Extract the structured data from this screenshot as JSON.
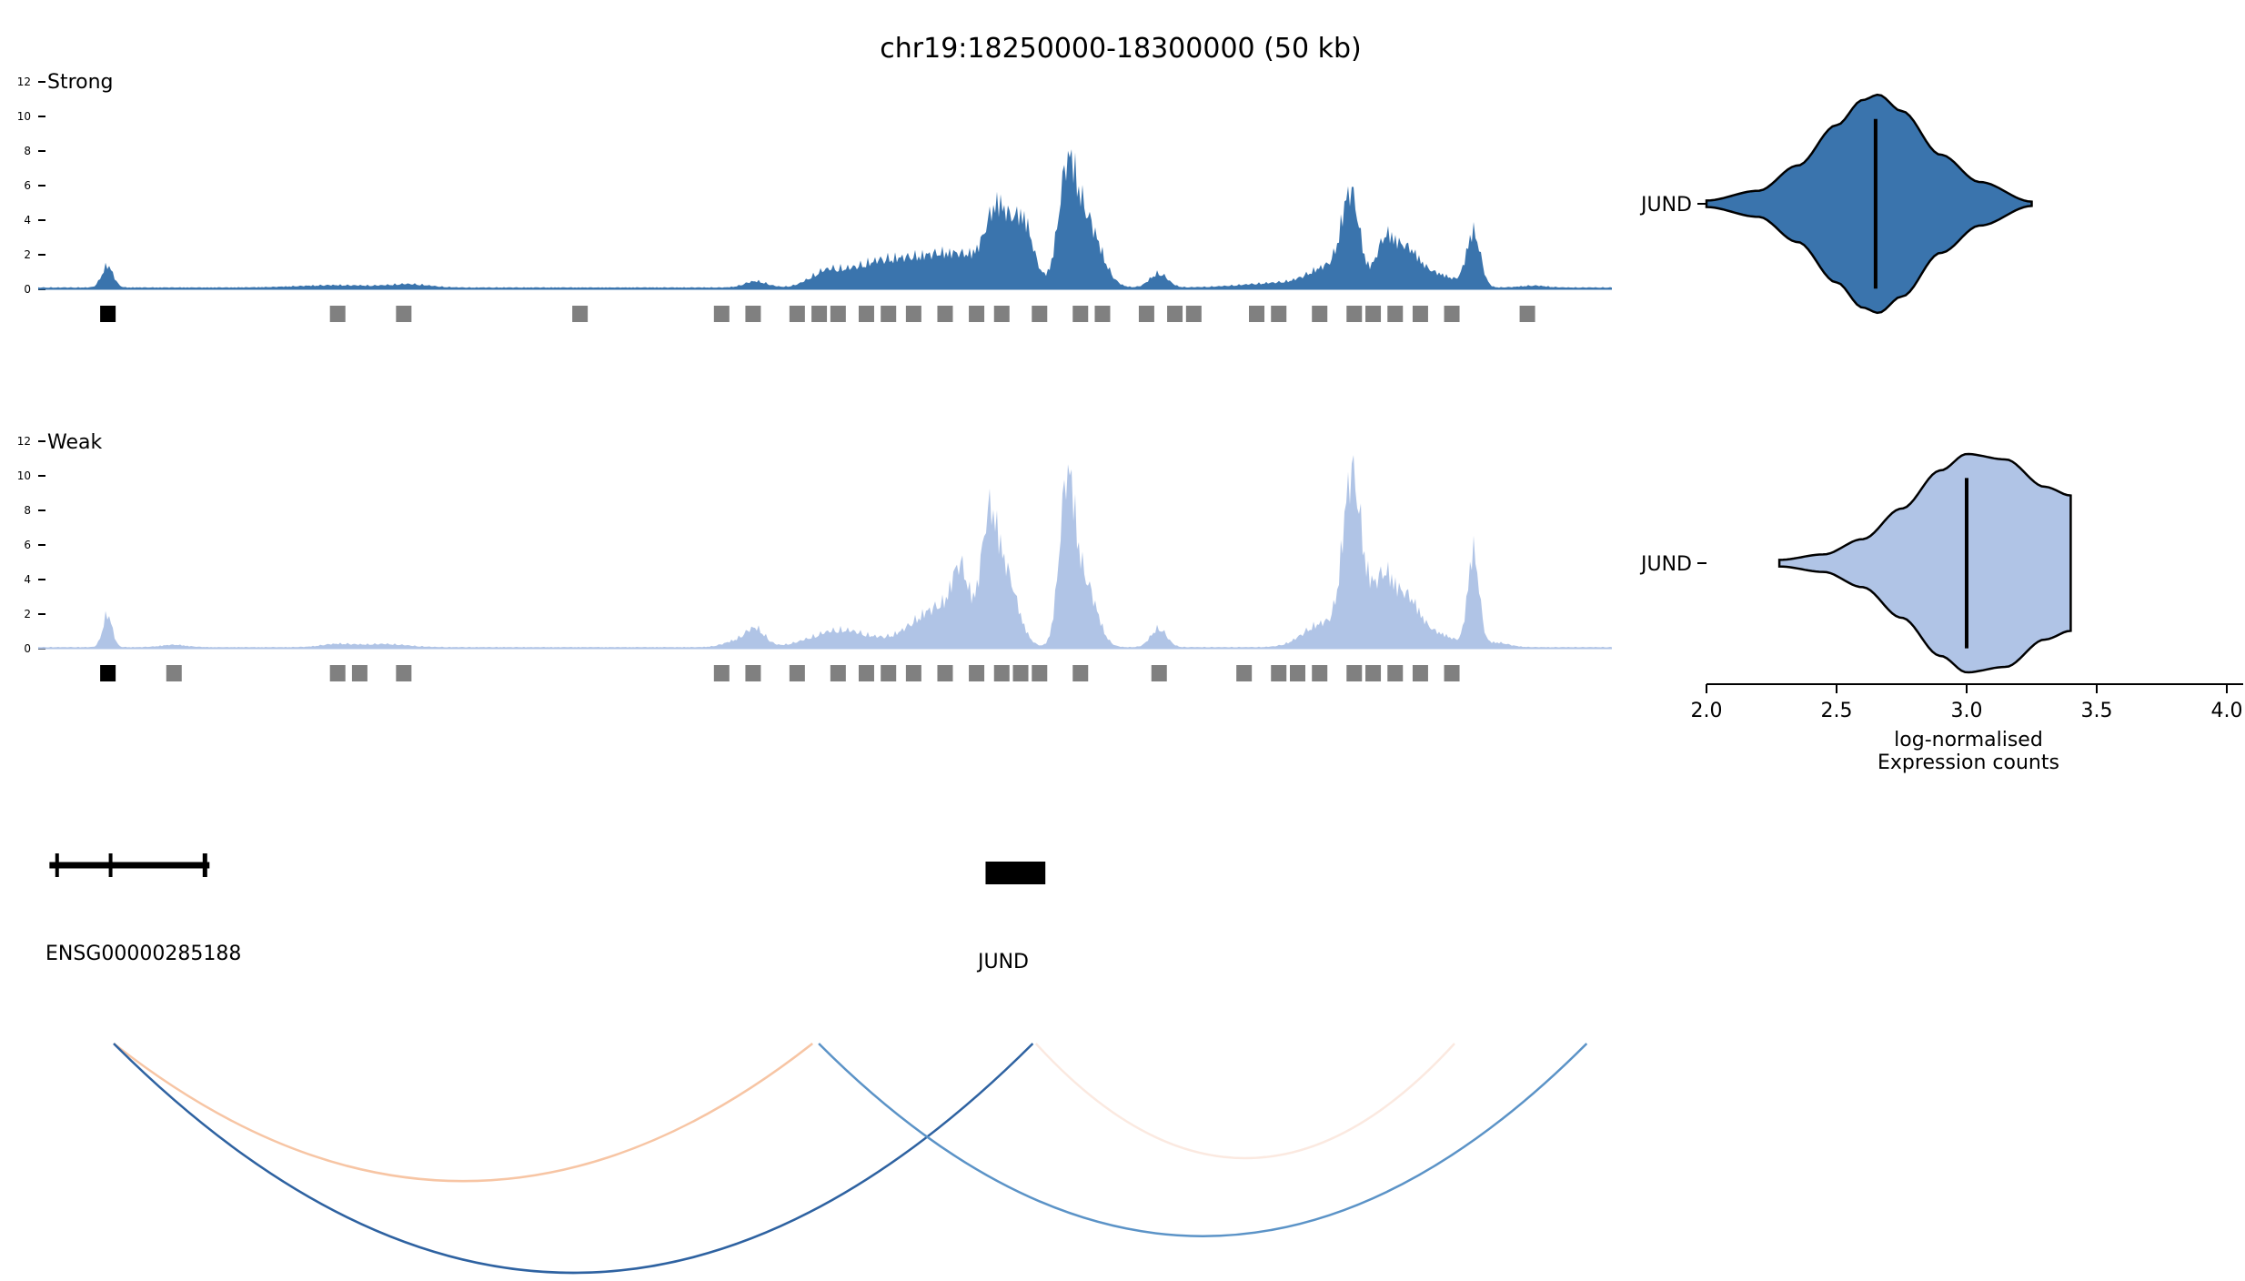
{
  "figure": {
    "title": "chr19:18250000-18300000 (50 kb)",
    "region": {
      "chrom": "chr19",
      "start": 18250000,
      "end": 18300000,
      "span_label": "50 kb"
    }
  },
  "chart_data": [
    {
      "type": "area",
      "panel": "coverage-track",
      "label": "Strong",
      "color": "#3a74ad",
      "ylim": [
        0,
        12
      ],
      "yticks": [
        "0",
        "2",
        "4",
        "6",
        "8",
        "10",
        "12"
      ],
      "x_unit": "kb from region start",
      "baseline": 0.12,
      "peaks": [
        {
          "center": 2.2,
          "height": 1.4,
          "width": 0.18
        },
        {
          "center": 9.5,
          "height": 0.15,
          "width": 1.2
        },
        {
          "center": 11.8,
          "height": 0.2,
          "width": 0.6
        },
        {
          "center": 22.8,
          "height": 0.4,
          "width": 0.35
        },
        {
          "center": 25.0,
          "height": 0.8,
          "width": 0.5
        },
        {
          "center": 26.5,
          "height": 1.1,
          "width": 0.9
        },
        {
          "center": 29.0,
          "height": 2.2,
          "width": 1.5
        },
        {
          "center": 30.5,
          "height": 4.0,
          "width": 0.35
        },
        {
          "center": 31.3,
          "height": 3.6,
          "width": 0.3
        },
        {
          "center": 32.7,
          "height": 6.4,
          "width": 0.28
        },
        {
          "center": 33.3,
          "height": 4.2,
          "width": 0.45
        },
        {
          "center": 35.6,
          "height": 0.9,
          "width": 0.28
        },
        {
          "center": 39.5,
          "height": 0.3,
          "width": 1.2
        },
        {
          "center": 41.0,
          "height": 1.2,
          "width": 0.6
        },
        {
          "center": 41.7,
          "height": 5.5,
          "width": 0.28
        },
        {
          "center": 42.8,
          "height": 2.8,
          "width": 0.3
        },
        {
          "center": 43.5,
          "height": 2.3,
          "width": 0.4
        },
        {
          "center": 44.5,
          "height": 0.8,
          "width": 0.5
        },
        {
          "center": 45.6,
          "height": 3.5,
          "width": 0.22
        },
        {
          "center": 47.5,
          "height": 0.12,
          "width": 0.4
        }
      ],
      "regions_kb": [
        {
          "x": 2.2,
          "highlight": true
        },
        {
          "x": 9.5
        },
        {
          "x": 11.6
        },
        {
          "x": 17.2
        },
        {
          "x": 21.7
        },
        {
          "x": 22.7
        },
        {
          "x": 24.1
        },
        {
          "x": 24.8
        },
        {
          "x": 25.4
        },
        {
          "x": 26.3
        },
        {
          "x": 27.0
        },
        {
          "x": 27.8
        },
        {
          "x": 28.8
        },
        {
          "x": 29.8
        },
        {
          "x": 30.6
        },
        {
          "x": 31.8
        },
        {
          "x": 33.1
        },
        {
          "x": 33.8
        },
        {
          "x": 35.2
        },
        {
          "x": 36.1
        },
        {
          "x": 36.7
        },
        {
          "x": 38.7
        },
        {
          "x": 39.4
        },
        {
          "x": 40.7
        },
        {
          "x": 41.8
        },
        {
          "x": 42.4
        },
        {
          "x": 43.1
        },
        {
          "x": 43.9
        },
        {
          "x": 44.9
        },
        {
          "x": 47.3
        }
      ],
      "violin": {
        "label": "JUND",
        "median": 2.65,
        "range": [
          2.0,
          3.25
        ],
        "profile": [
          [
            2.0,
            0.03
          ],
          [
            2.2,
            0.12
          ],
          [
            2.35,
            0.35
          ],
          [
            2.5,
            0.72
          ],
          [
            2.6,
            0.95
          ],
          [
            2.66,
            1.0
          ],
          [
            2.75,
            0.85
          ],
          [
            2.9,
            0.45
          ],
          [
            3.05,
            0.2
          ],
          [
            3.25,
            0.02
          ]
        ]
      }
    },
    {
      "type": "area",
      "panel": "coverage-track",
      "label": "Weak",
      "color": "#b0c4e6",
      "ylim": [
        0,
        12
      ],
      "yticks": [
        "0",
        "2",
        "4",
        "6",
        "8",
        "10",
        "12"
      ],
      "x_unit": "kb from region start",
      "baseline": 0.1,
      "peaks": [
        {
          "center": 2.2,
          "height": 2.1,
          "width": 0.15
        },
        {
          "center": 4.3,
          "height": 0.15,
          "width": 0.4
        },
        {
          "center": 9.5,
          "height": 0.2,
          "width": 0.5
        },
        {
          "center": 11.0,
          "height": 0.2,
          "width": 0.7
        },
        {
          "center": 22.2,
          "height": 0.4,
          "width": 0.4
        },
        {
          "center": 22.8,
          "height": 1.1,
          "width": 0.3
        },
        {
          "center": 25.5,
          "height": 1.1,
          "width": 0.9
        },
        {
          "center": 28.7,
          "height": 2.6,
          "width": 0.9
        },
        {
          "center": 29.3,
          "height": 3.2,
          "width": 0.25
        },
        {
          "center": 30.2,
          "height": 6.0,
          "width": 0.25
        },
        {
          "center": 30.7,
          "height": 4.6,
          "width": 0.4
        },
        {
          "center": 32.7,
          "height": 10.3,
          "width": 0.25
        },
        {
          "center": 33.3,
          "height": 3.8,
          "width": 0.35
        },
        {
          "center": 35.6,
          "height": 1.2,
          "width": 0.25
        },
        {
          "center": 40.8,
          "height": 1.5,
          "width": 0.6
        },
        {
          "center": 41.7,
          "height": 7.6,
          "width": 0.26
        },
        {
          "center": 42.0,
          "height": 4.0,
          "width": 0.4
        },
        {
          "center": 42.8,
          "height": 3.6,
          "width": 0.3
        },
        {
          "center": 43.5,
          "height": 3.0,
          "width": 0.4
        },
        {
          "center": 44.5,
          "height": 0.8,
          "width": 0.5
        },
        {
          "center": 45.6,
          "height": 6.0,
          "width": 0.18
        },
        {
          "center": 46.3,
          "height": 0.3,
          "width": 0.4
        }
      ],
      "regions_kb": [
        {
          "x": 2.2,
          "highlight": true
        },
        {
          "x": 4.3
        },
        {
          "x": 9.5
        },
        {
          "x": 10.2
        },
        {
          "x": 11.6
        },
        {
          "x": 21.7
        },
        {
          "x": 22.7
        },
        {
          "x": 24.1
        },
        {
          "x": 25.4
        },
        {
          "x": 26.3
        },
        {
          "x": 27.0
        },
        {
          "x": 27.8
        },
        {
          "x": 28.8
        },
        {
          "x": 29.8
        },
        {
          "x": 30.6
        },
        {
          "x": 31.2
        },
        {
          "x": 31.8
        },
        {
          "x": 33.1
        },
        {
          "x": 35.6
        },
        {
          "x": 38.3
        },
        {
          "x": 39.4
        },
        {
          "x": 40.0
        },
        {
          "x": 40.7
        },
        {
          "x": 41.8
        },
        {
          "x": 42.4
        },
        {
          "x": 43.1
        },
        {
          "x": 43.9
        },
        {
          "x": 44.9
        }
      ],
      "violin": {
        "label": "JUND",
        "median": 3.0,
        "range": [
          2.28,
          3.4
        ],
        "profile": [
          [
            2.28,
            0.03
          ],
          [
            2.45,
            0.08
          ],
          [
            2.6,
            0.22
          ],
          [
            2.75,
            0.5
          ],
          [
            2.9,
            0.85
          ],
          [
            3.0,
            1.0
          ],
          [
            3.15,
            0.95
          ],
          [
            3.3,
            0.7
          ],
          [
            3.4,
            0.62
          ]
        ]
      }
    },
    {
      "type": "violin",
      "panel": "expression",
      "xlabel_line1": "log-normalised",
      "xlabel_line2": "Expression counts",
      "xlim": [
        2.0,
        4.0
      ],
      "xticks": [
        "2.0",
        "2.5",
        "3.0",
        "3.5",
        "4.0"
      ]
    },
    {
      "type": "gene-annotation",
      "genes": [
        {
          "name": "ENSG00000285188",
          "start_kb": 0.3,
          "end_kb": 5.5,
          "exons_kb": [
            0.6,
            2.3
          ]
        },
        {
          "name": "JUND",
          "start_kb": 30.1,
          "end_kb": 32.0,
          "exons_kb": []
        }
      ]
    },
    {
      "type": "arcs",
      "links": [
        {
          "from_kb": 2.4,
          "to_kb": 24.6,
          "depth": 0.6,
          "color": "#f7c5a4"
        },
        {
          "from_kb": 2.4,
          "to_kb": 31.6,
          "depth": 1.0,
          "color": "#2e62a1"
        },
        {
          "from_kb": 24.8,
          "to_kb": 49.2,
          "depth": 0.84,
          "color": "#5b93c7"
        },
        {
          "from_kb": 31.7,
          "to_kb": 45.0,
          "depth": 0.5,
          "color": "#fbe9e0"
        }
      ]
    }
  ]
}
